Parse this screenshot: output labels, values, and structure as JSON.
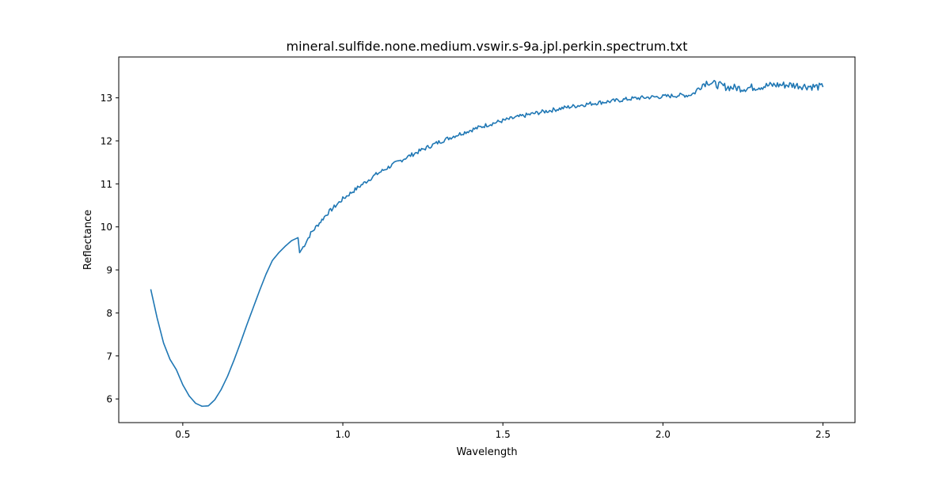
{
  "chart_data": {
    "type": "line",
    "title": "mineral.sulfide.none.medium.vswir.s-9a.jpl.perkin.spectrum.txt",
    "xlabel": "Wavelength",
    "ylabel": "Reflectance",
    "xlim": [
      0.3,
      2.6
    ],
    "ylim": [
      5.45,
      13.95
    ],
    "xticks": [
      0.5,
      1.0,
      1.5,
      2.0,
      2.5
    ],
    "xtick_labels": [
      "0.5",
      "1.0",
      "1.5",
      "2.0",
      "2.5"
    ],
    "yticks": [
      6,
      7,
      8,
      9,
      10,
      11,
      12,
      13
    ],
    "ytick_labels": [
      "6",
      "7",
      "8",
      "9",
      "10",
      "11",
      "12",
      "13"
    ],
    "grid": false,
    "line_color": "#1f77b4",
    "series": [
      {
        "x": [
          0.4,
          0.42,
          0.44,
          0.46,
          0.48,
          0.5,
          0.52,
          0.54,
          0.56,
          0.58,
          0.6,
          0.62,
          0.64,
          0.66,
          0.68,
          0.7,
          0.72,
          0.74,
          0.76,
          0.78,
          0.8,
          0.82,
          0.84,
          0.86,
          0.865,
          0.88,
          0.9,
          0.95,
          1.0,
          1.05,
          1.1,
          1.15,
          1.2,
          1.25,
          1.3,
          1.35,
          1.4,
          1.45,
          1.5,
          1.55,
          1.6,
          1.65,
          1.7,
          1.75,
          1.8,
          1.85,
          1.9,
          1.95,
          2.0,
          2.05,
          2.08,
          2.1,
          2.12,
          2.14,
          2.16,
          2.2,
          2.25,
          2.3,
          2.35,
          2.4,
          2.45,
          2.5
        ],
        "y": [
          8.55,
          7.88,
          7.3,
          6.92,
          6.68,
          6.33,
          6.07,
          5.9,
          5.83,
          5.84,
          5.98,
          6.22,
          6.53,
          6.9,
          7.3,
          7.72,
          8.12,
          8.52,
          8.9,
          9.22,
          9.4,
          9.55,
          9.68,
          9.75,
          9.4,
          9.58,
          9.85,
          10.3,
          10.65,
          10.93,
          11.2,
          11.42,
          11.62,
          11.8,
          11.97,
          12.12,
          12.25,
          12.37,
          12.47,
          12.56,
          12.64,
          12.71,
          12.78,
          12.84,
          12.89,
          12.93,
          12.98,
          13.01,
          13.03,
          13.06,
          13.06,
          13.12,
          13.3,
          13.38,
          13.32,
          13.25,
          13.22,
          13.26,
          13.3,
          13.3,
          13.27,
          13.25
        ]
      }
    ]
  }
}
